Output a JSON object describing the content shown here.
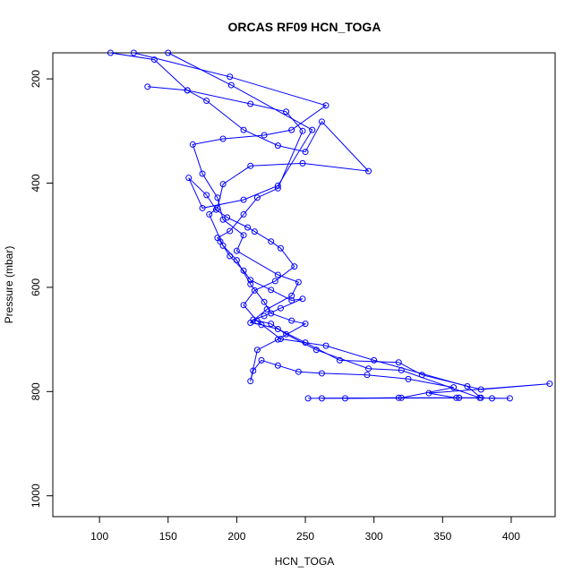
{
  "chart_data": {
    "type": "line",
    "title": "ORCAS RF09 HCN_TOGA",
    "xlabel": "HCN_TOGA",
    "ylabel": "Pressure (mbar)",
    "xlim": [
      66,
      432
    ],
    "ylim": [
      1040,
      150
    ],
    "y_reversed": true,
    "grid": false,
    "legend": "none",
    "marker": "open-circle",
    "color": "#0000ff",
    "xticks": [
      100,
      150,
      200,
      250,
      300,
      350,
      400
    ],
    "yticks": [
      200,
      400,
      600,
      800,
      1000
    ],
    "series": [
      {
        "x": [
          108,
          140,
          164,
          178,
          205,
          230,
          250,
          262,
          296,
          248,
          210,
          190,
          186,
          180,
          190,
          200,
          210,
          220,
          225,
          240,
          250,
          230,
          215,
          210,
          212,
          218,
          230,
          245,
          262,
          295,
          325,
          358,
          320,
          252
        ],
        "y": [
          150,
          163,
          222,
          242,
          298,
          328,
          340,
          282,
          377,
          362,
          367,
          402,
          448,
          460,
          520,
          548,
          594,
          628,
          650,
          664,
          670,
          700,
          720,
          780,
          760,
          740,
          750,
          762,
          765,
          768,
          776,
          792,
          812,
          813
        ]
      },
      {
        "x": [
          125,
          195,
          265,
          240,
          220,
          190,
          168,
          175,
          186,
          190,
          205,
          200,
          230,
          245,
          240,
          222,
          210,
          218,
          230,
          250,
          275,
          318,
          335,
          378,
          428,
          340,
          360,
          362
        ],
        "y": [
          150,
          196,
          251,
          298,
          308,
          315,
          326,
          382,
          428,
          470,
          500,
          530,
          576,
          590,
          616,
          642,
          668,
          672,
          680,
          706,
          740,
          744,
          768,
          796,
          785,
          803,
          812,
          812
        ]
      },
      {
        "x": [
          150,
          196,
          255,
          230,
          205,
          175,
          165,
          178,
          185,
          193,
          208,
          213,
          225,
          232,
          242,
          228,
          213,
          205,
          215,
          232,
          265,
          300,
          368,
          378,
          386,
          399,
          362,
          318,
          262
        ],
        "y": [
          150,
          212,
          298,
          405,
          432,
          448,
          390,
          423,
          451,
          466,
          485,
          493,
          512,
          525,
          560,
          588,
          606,
          634,
          665,
          699,
          712,
          740,
          790,
          812,
          813,
          813,
          812,
          812,
          813
        ]
      },
      {
        "x": [
          135,
          164,
          210,
          236,
          248,
          230,
          215,
          205,
          195,
          186,
          188,
          195,
          205,
          210,
          225,
          240,
          248,
          232,
          220,
          212,
          225,
          236,
          258,
          296,
          320,
          377,
          279
        ],
        "y": [
          215,
          222,
          248,
          263,
          300,
          410,
          428,
          460,
          492,
          505,
          512,
          540,
          568,
          586,
          605,
          625,
          622,
          640,
          655,
          662,
          670,
          690,
          720,
          756,
          759,
          812,
          813
        ]
      }
    ]
  }
}
